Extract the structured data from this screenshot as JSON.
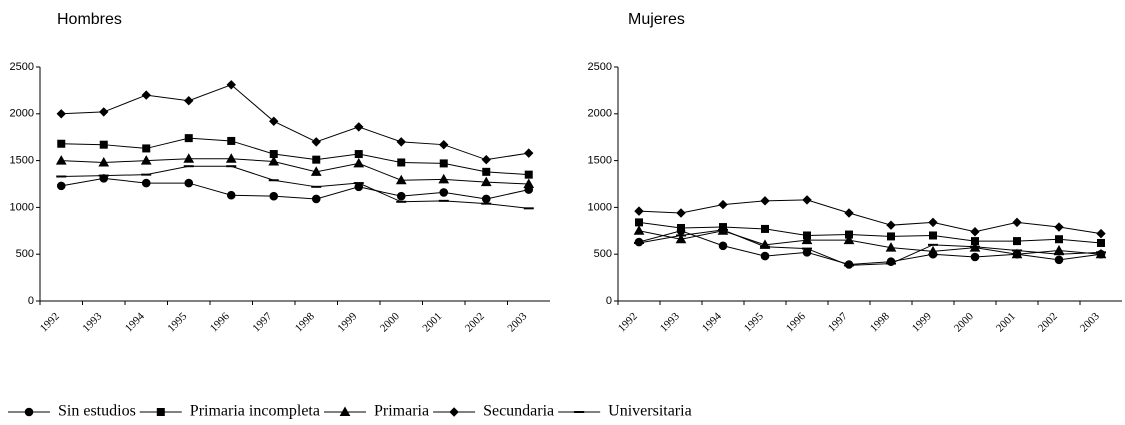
{
  "chart_data": [
    {
      "type": "line",
      "title": "Hombres",
      "categories": [
        "1992",
        "1993",
        "1994",
        "1995",
        "1996",
        "1997",
        "1998",
        "1999",
        "2000",
        "2001",
        "2002",
        "2003"
      ],
      "ylim": [
        0,
        2500
      ],
      "yticks": [
        0,
        500,
        1000,
        1500,
        2000,
        2500
      ],
      "series": [
        {
          "name": "Sin estudios",
          "color": "#000000",
          "marker": "circle",
          "values": [
            1230,
            1310,
            1260,
            1260,
            1130,
            1120,
            1090,
            1220,
            1120,
            1160,
            1090,
            1190
          ]
        },
        {
          "name": "Primaria incompleta",
          "color": "#000000",
          "marker": "square",
          "values": [
            1680,
            1670,
            1630,
            1740,
            1710,
            1570,
            1510,
            1570,
            1480,
            1470,
            1380,
            1350
          ]
        },
        {
          "name": "Primaria",
          "color": "#000000",
          "marker": "triangle",
          "values": [
            1500,
            1480,
            1500,
            1520,
            1520,
            1490,
            1380,
            1470,
            1290,
            1300,
            1270,
            1250
          ]
        },
        {
          "name": "Secundaria",
          "color": "#000000",
          "marker": "diamond",
          "values": [
            2000,
            2020,
            2200,
            2140,
            2310,
            1920,
            1700,
            1860,
            1700,
            1670,
            1510,
            1580
          ]
        },
        {
          "name": "Universitaria",
          "color": "#000000",
          "marker": "dash",
          "values": [
            1330,
            1340,
            1350,
            1440,
            1440,
            1290,
            1220,
            1260,
            1060,
            1070,
            1040,
            990
          ]
        }
      ]
    },
    {
      "type": "line",
      "title": "Mujeres",
      "categories": [
        "1992",
        "1993",
        "1994",
        "1995",
        "1996",
        "1997",
        "1998",
        "1999",
        "2000",
        "2001",
        "2002",
        "2003"
      ],
      "ylim": [
        0,
        2500
      ],
      "yticks": [
        0,
        500,
        1000,
        1500,
        2000,
        2500
      ],
      "series": [
        {
          "name": "Sin estudios",
          "color": "#000000",
          "marker": "circle",
          "values": [
            630,
            750,
            590,
            480,
            520,
            390,
            420,
            500,
            470,
            500,
            440,
            500
          ]
        },
        {
          "name": "Primaria incompleta",
          "color": "#000000",
          "marker": "square",
          "values": [
            840,
            780,
            790,
            770,
            700,
            710,
            690,
            700,
            640,
            640,
            660,
            620
          ]
        },
        {
          "name": "Primaria",
          "color": "#000000",
          "marker": "triangle",
          "values": [
            750,
            660,
            750,
            600,
            650,
            650,
            570,
            530,
            570,
            500,
            540,
            500
          ]
        },
        {
          "name": "Secundaria",
          "color": "#000000",
          "marker": "diamond",
          "values": [
            960,
            940,
            1030,
            1070,
            1080,
            940,
            810,
            840,
            740,
            840,
            790,
            720
          ]
        },
        {
          "name": "Universitaria",
          "color": "#000000",
          "marker": "dash",
          "values": [
            620,
            700,
            760,
            580,
            560,
            380,
            400,
            600,
            580,
            540,
            500,
            520
          ]
        }
      ]
    }
  ]
}
